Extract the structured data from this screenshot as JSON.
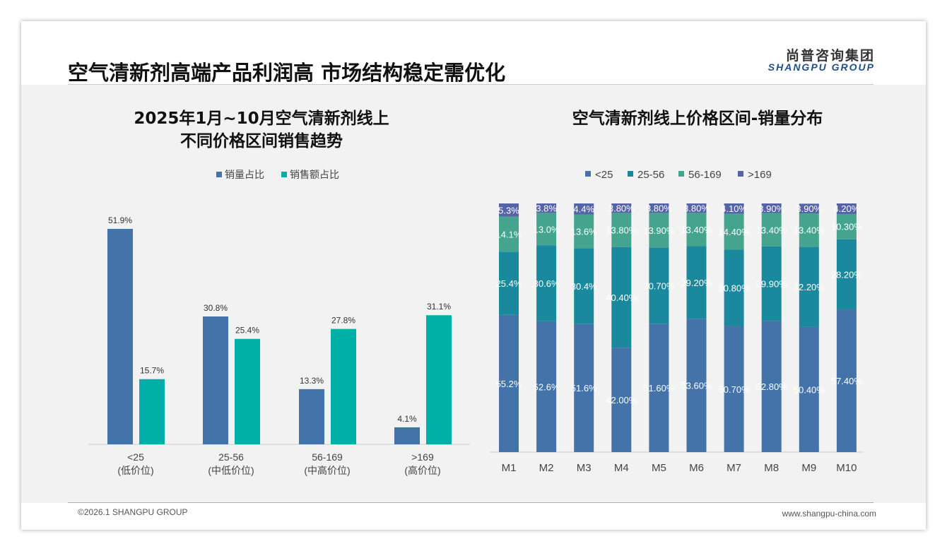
{
  "header": {
    "title": "空气清新剂高端产品利润高 市场结构稳定需优化",
    "logo_cn": "尚普咨询集团",
    "logo_en": "SHANGPU GROUP"
  },
  "footer": {
    "copyright": "©2026.1 SHANGPU GROUP",
    "website": "www.shangpu-china.com"
  },
  "colors": {
    "sales_volume": "#4373a9",
    "sales_amount": "#00b0a6",
    "lt25": "#4373a9",
    "r25_56": "#1a899d",
    "r56_169": "#44a48d",
    "gt169": "#5563a7"
  },
  "chart_data": [
    {
      "type": "bar",
      "title_line1": "2025年1月~10月空气清新剂线上",
      "title_line2": "不同价格区间销售趋势",
      "categories": [
        "<25",
        "25-56",
        "56-169",
        ">169"
      ],
      "subcategories": [
        "(低价位)",
        "(中低价位)",
        "(中高价位)",
        "(高价位)"
      ],
      "series": [
        {
          "name": "销量占比",
          "values": [
            51.9,
            30.8,
            13.3,
            4.1
          ],
          "labels": [
            "51.9%",
            "30.8%",
            "13.3%",
            "4.1%"
          ]
        },
        {
          "name": "销售额占比",
          "values": [
            15.7,
            25.4,
            27.8,
            31.1
          ],
          "labels": [
            "15.7%",
            "25.4%",
            "27.8%",
            "31.1%"
          ]
        }
      ],
      "legend": "top",
      "ylim": [
        0,
        55
      ]
    },
    {
      "type": "bar",
      "stacked": true,
      "title": "空气清新剂线上价格区间-销量分布",
      "categories": [
        "M1",
        "M2",
        "M3",
        "M4",
        "M5",
        "M6",
        "M7",
        "M8",
        "M9",
        "M10"
      ],
      "series": [
        {
          "name": "<25",
          "values": [
            55.2,
            52.6,
            51.6,
            42.0,
            51.6,
            53.6,
            50.7,
            52.8,
            50.4,
            57.4
          ],
          "labels": [
            "55.2%",
            "52.6%",
            "51.6%",
            "42.00%",
            "51.60%",
            "53.60%",
            "50.70%",
            "52.80%",
            "50.40%",
            "57.40%"
          ]
        },
        {
          "name": "25-56",
          "values": [
            25.4,
            30.6,
            30.4,
            40.4,
            30.7,
            29.2,
            30.8,
            29.9,
            32.2,
            28.2
          ],
          "labels": [
            "25.4%",
            "30.6%",
            "30.4%",
            "40.40%",
            "30.70%",
            "29.20%",
            "30.80%",
            "29.90%",
            "32.20%",
            "28.20%"
          ]
        },
        {
          "name": "56-169",
          "values": [
            14.1,
            13.0,
            13.6,
            13.8,
            13.9,
            13.4,
            14.4,
            13.4,
            13.4,
            10.3
          ],
          "labels": [
            "14.1%",
            "13.0%",
            "13.6%",
            "13.80%",
            "13.90%",
            "13.40%",
            "14.40%",
            "13.40%",
            "13.40%",
            "10.30%"
          ]
        },
        {
          "name": ">169",
          "values": [
            5.3,
            3.8,
            4.4,
            3.8,
            3.8,
            3.8,
            4.1,
            3.9,
            3.9,
            4.2
          ],
          "labels": [
            "5.3%",
            "3.8%",
            "4.4%",
            "3.80%",
            "3.80%",
            "3.80%",
            "4.10%",
            "3.90%",
            "3.90%",
            "4.20%"
          ]
        }
      ],
      "legend": "top",
      "ylim": [
        0,
        100
      ]
    }
  ]
}
